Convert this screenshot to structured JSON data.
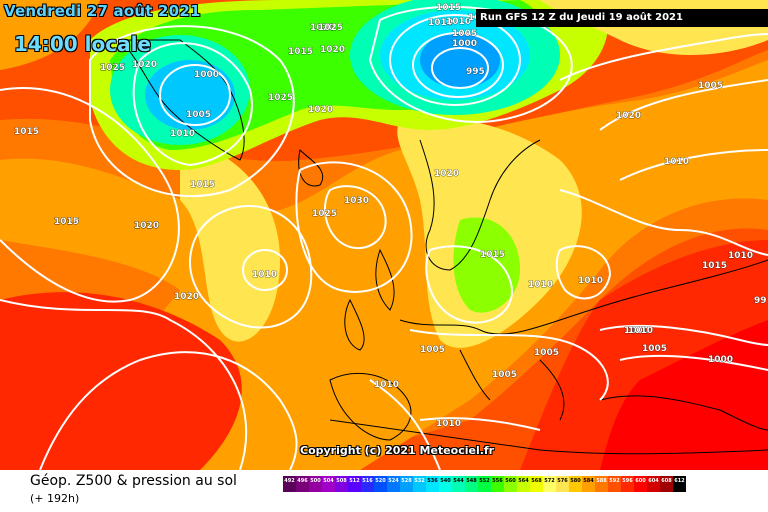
{
  "header": {
    "date_text": "Vendredi 27 août 2021",
    "time_text": "14:00 locale",
    "run_text": "Run GFS 12 Z du Jeudi 19 août 2021"
  },
  "footer": {
    "title": "Géop. Z500 & pression au sol",
    "subtitle": "(+ 192h)",
    "copyright": "Copyright (c) 2021 Meteociel.fr"
  },
  "legend_scale": [
    {
      "value": "492",
      "color": "#5a005a"
    },
    {
      "value": "496",
      "color": "#7a007a"
    },
    {
      "value": "500",
      "color": "#9400a0"
    },
    {
      "value": "504",
      "color": "#a000c8"
    },
    {
      "value": "508",
      "color": "#8000e0"
    },
    {
      "value": "512",
      "color": "#5a00ff"
    },
    {
      "value": "516",
      "color": "#2a2aff"
    },
    {
      "value": "520",
      "color": "#0050ff"
    },
    {
      "value": "524",
      "color": "#0078ff"
    },
    {
      "value": "528",
      "color": "#00a0ff"
    },
    {
      "value": "532",
      "color": "#00c8ff"
    },
    {
      "value": "536",
      "color": "#00e6ff"
    },
    {
      "value": "540",
      "color": "#00ffe6"
    },
    {
      "value": "544",
      "color": "#00ffb4"
    },
    {
      "value": "548",
      "color": "#00ff80"
    },
    {
      "value": "552",
      "color": "#00ff40"
    },
    {
      "value": "556",
      "color": "#3cff00"
    },
    {
      "value": "560",
      "color": "#8cff00"
    },
    {
      "value": "564",
      "color": "#c8ff00"
    },
    {
      "value": "568",
      "color": "#f0ff00"
    },
    {
      "value": "572",
      "color": "#ffff66"
    },
    {
      "value": "576",
      "color": "#ffe650"
    },
    {
      "value": "580",
      "color": "#ffc800"
    },
    {
      "value": "584",
      "color": "#ffa000"
    },
    {
      "value": "588",
      "color": "#ff7800"
    },
    {
      "value": "592",
      "color": "#ff5000"
    },
    {
      "value": "596",
      "color": "#ff2800"
    },
    {
      "value": "600",
      "color": "#ff0000"
    },
    {
      "value": "604",
      "color": "#d20000"
    },
    {
      "value": "608",
      "color": "#a00000"
    },
    {
      "value": "612",
      "color": "#000000"
    }
  ],
  "isobar_labels": [
    "1025",
    "1020",
    "1000",
    "1005",
    "1010",
    "1015",
    "1020",
    "1020",
    "1025",
    "1020",
    "1015",
    "1010",
    "1015",
    "1020",
    "1015",
    "1010",
    "1020",
    "1010",
    "1025",
    "1030",
    "1020",
    "1015",
    "1010",
    "1010",
    "1010",
    "1005",
    "1000",
    "1005",
    "1005",
    "1000",
    "1010",
    "1010",
    "1015",
    "1025",
    "1010",
    "1005",
    "995",
    "1000",
    "1005",
    "1010",
    "1015",
    "1020",
    "1015",
    "1005",
    "1010",
    "1020",
    "1025",
    "99"
  ],
  "colors": {
    "banner_bg": "#000000",
    "date_text": "#5fd3ff",
    "isobar": "#ffffff",
    "coastline": "#000000"
  }
}
